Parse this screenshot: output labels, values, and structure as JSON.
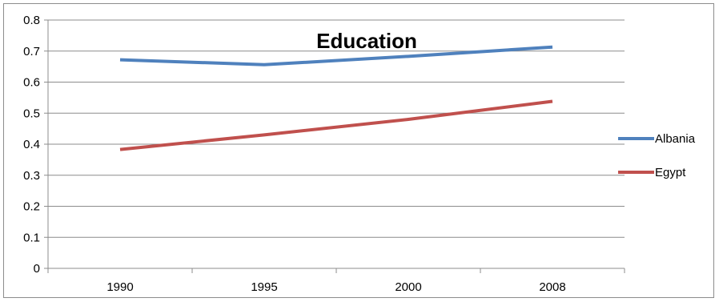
{
  "chart_data": {
    "type": "line",
    "title": "Education",
    "categories": [
      "1990",
      "1995",
      "2000",
      "2008"
    ],
    "series": [
      {
        "name": "Albania",
        "values": [
          0.672,
          0.656,
          0.683,
          0.713
        ],
        "color": "#4F81BD"
      },
      {
        "name": "Egypt",
        "values": [
          0.383,
          0.43,
          0.48,
          0.538
        ],
        "color": "#C0504D"
      }
    ],
    "yticks": [
      "0",
      "0.1",
      "0.2",
      "0.3",
      "0.4",
      "0.5",
      "0.6",
      "0.7",
      "0.8"
    ],
    "ylim": [
      0,
      0.8
    ],
    "xlabel": "",
    "ylabel": "",
    "grid": true,
    "legend_position": "right",
    "gridline_color": "#8c8c8c"
  }
}
